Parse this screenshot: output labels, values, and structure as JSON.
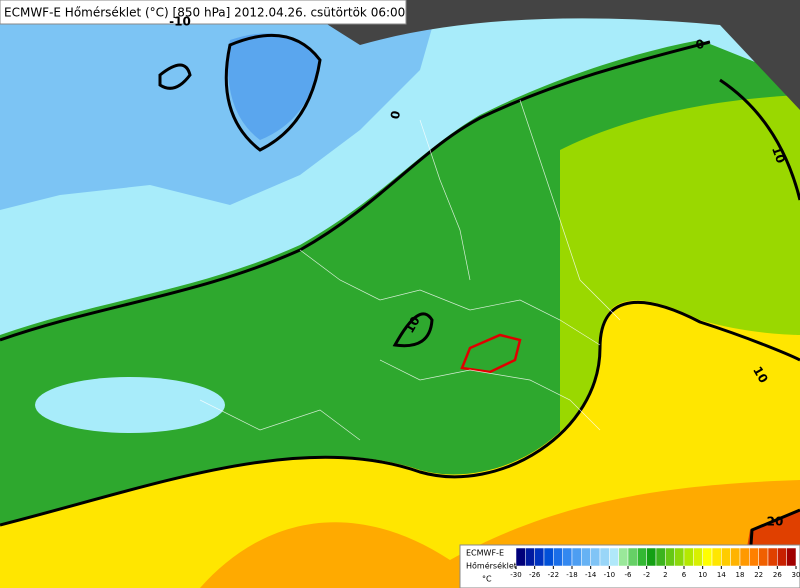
{
  "header": {
    "title": "ECMWF-E Hőmérséklet (°C) [850 hPa] 2012.04.26. csütörtök 06:00"
  },
  "map": {
    "contour_labels": [
      -10,
      0,
      0,
      10,
      10,
      10,
      20
    ]
  },
  "legend": {
    "model": "ECMWF-E",
    "variable": "Hőmérséklet",
    "unit": "°C",
    "ticks": [
      -30,
      -26,
      -22,
      -18,
      -14,
      -10,
      -6,
      -2,
      2,
      6,
      10,
      14,
      18,
      22,
      26,
      30
    ],
    "colors": [
      "#00007a",
      "#001aa0",
      "#0033c0",
      "#0050d8",
      "#1a6ee8",
      "#3388f0",
      "#4d9ef2",
      "#66b2f4",
      "#80c4f6",
      "#99d6f8",
      "#b0e8fa",
      "#9ae89a",
      "#66d066",
      "#33b833",
      "#14a014",
      "#3cb41e",
      "#66c814",
      "#8cd80a",
      "#b4e800",
      "#d8f000",
      "#ffff00",
      "#ffe600",
      "#ffcc00",
      "#ffb300",
      "#ff9900",
      "#ff8000",
      "#f06000",
      "#e04000",
      "#c82000",
      "#a00000"
    ]
  }
}
